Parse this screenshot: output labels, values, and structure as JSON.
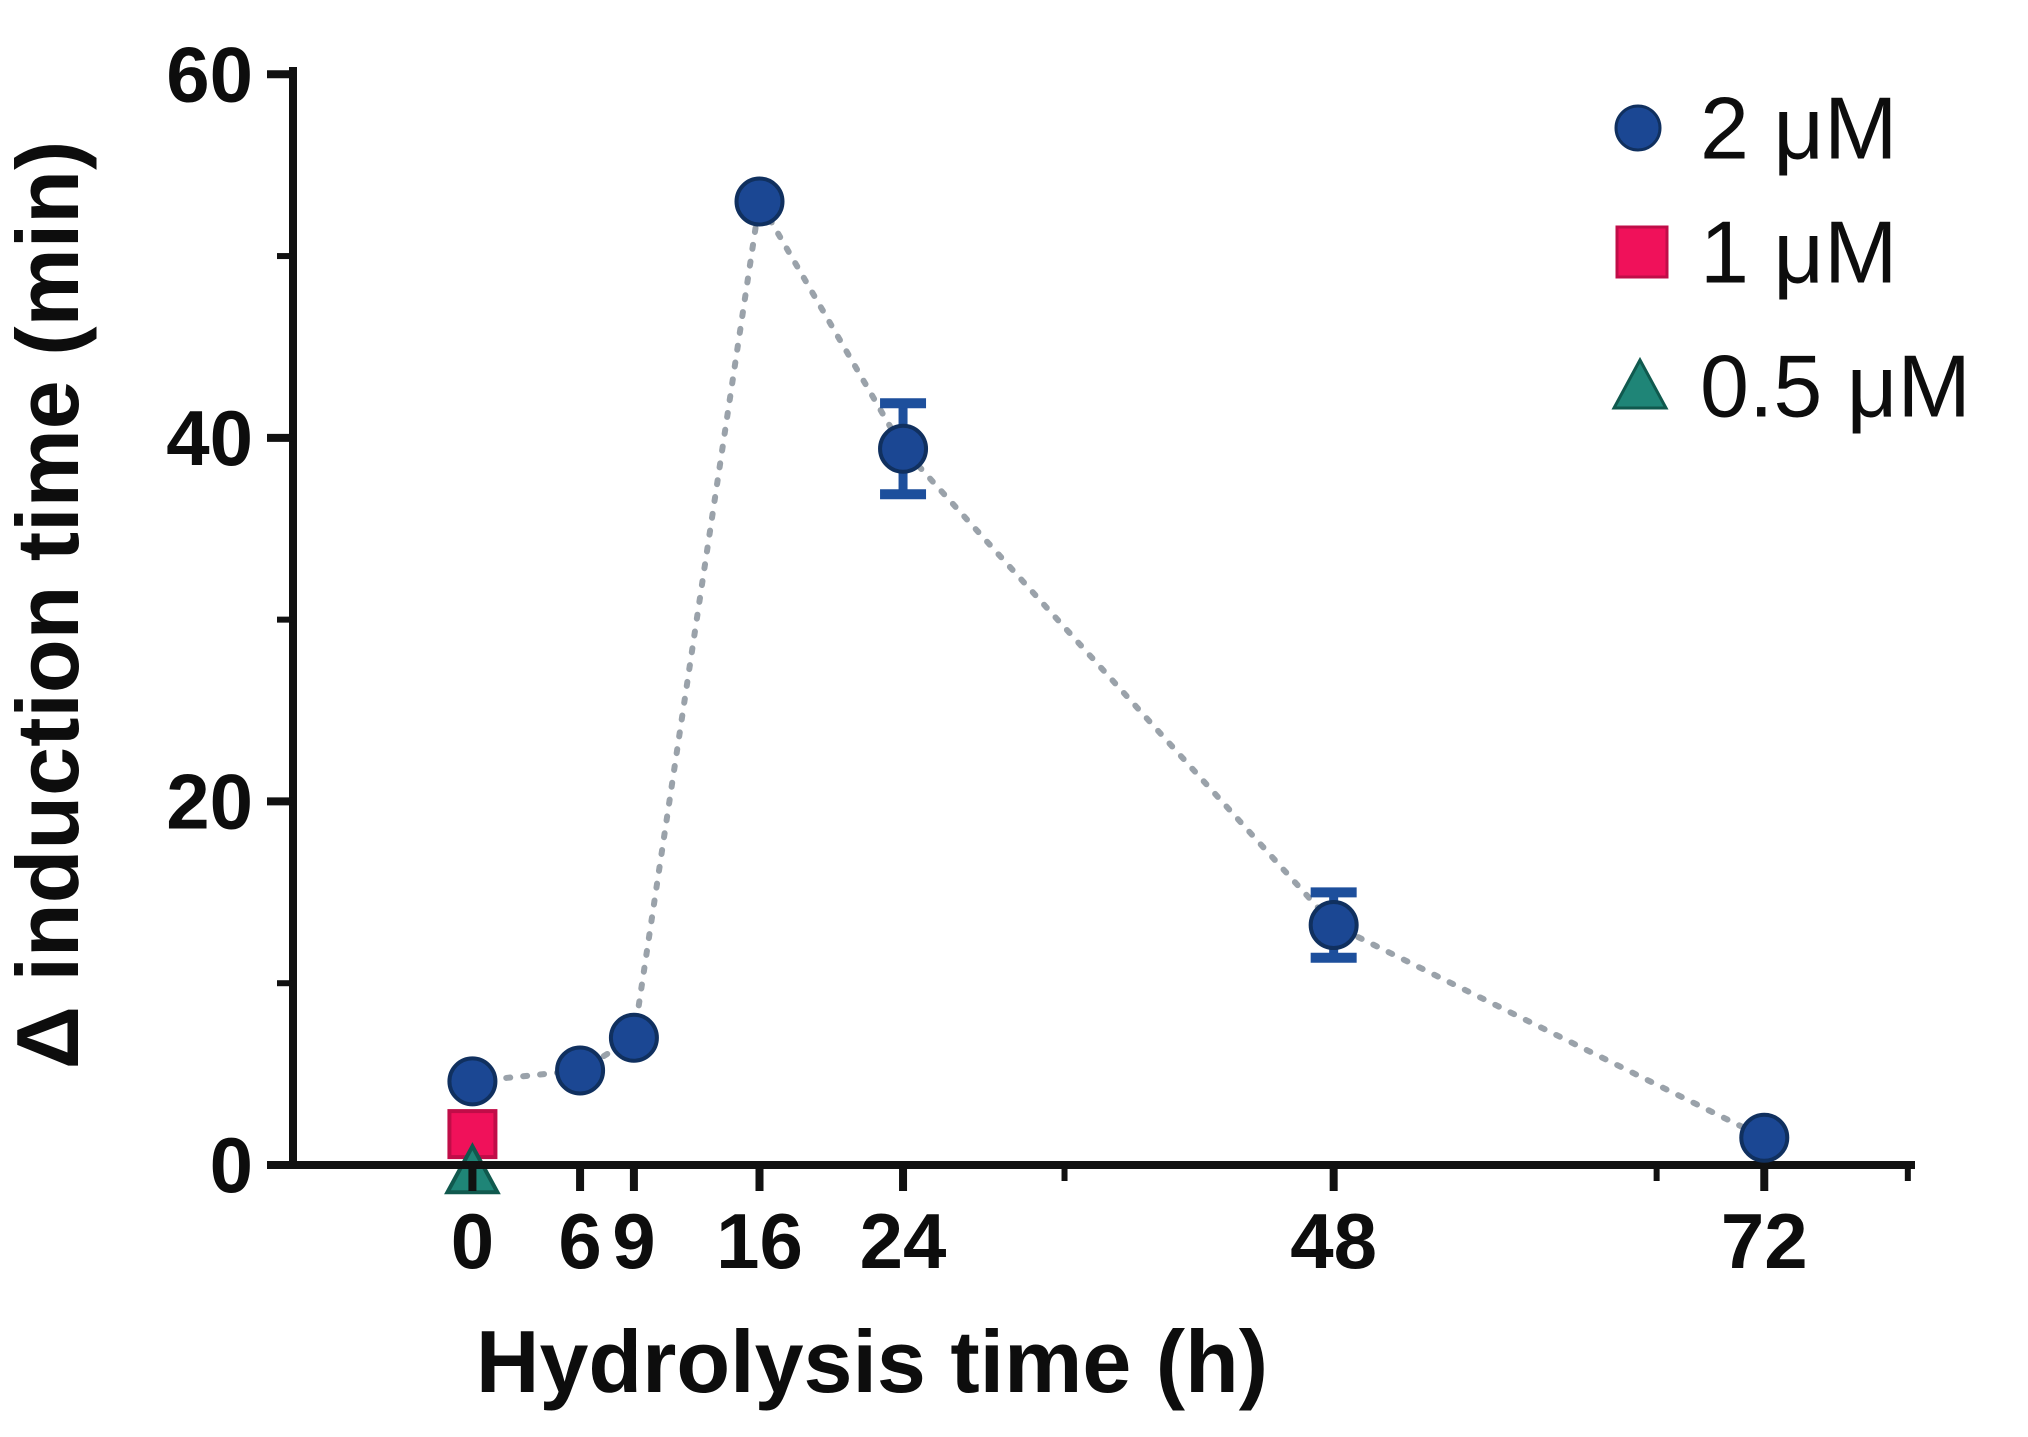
{
  "figure": {
    "kind": "scientific scatter plot",
    "background": "#ffffff"
  },
  "chart_data": {
    "type": "scatter",
    "title": "",
    "xlabel": "Hydrolysis time (h)",
    "ylabel": "Δ induction time (min)",
    "xlim": [
      -10,
      80.4
    ],
    "ylim": [
      0,
      60.4
    ],
    "grid": false,
    "legend_position": "top-right",
    "x_major_ticks": [
      0,
      6,
      9,
      16,
      24,
      48,
      72
    ],
    "x_minor_ticks": [
      33,
      66,
      80
    ],
    "y_major_ticks": [
      0,
      20,
      40,
      60
    ],
    "y_minor_ticks": [
      10,
      30,
      50
    ],
    "x_tick_labels": [
      "0",
      "6",
      "9",
      "16",
      "24",
      "48",
      "72"
    ],
    "y_tick_labels": [
      "0",
      "20",
      "40",
      "60"
    ],
    "connector": {
      "style": "dotted",
      "color": "#9aa2aa"
    },
    "error_bar_color": "#1d4f9c",
    "series": [
      {
        "name": "2 μM",
        "marker": "circle",
        "color": "#1b4793",
        "edge_color": "#10305f",
        "connected": true,
        "x": [
          0,
          6,
          9,
          16,
          24,
          48,
          72
        ],
        "y": [
          4.6,
          5.2,
          7.0,
          53.0,
          39.4,
          13.2,
          1.5
        ],
        "y_err": [
          0,
          0,
          0,
          0,
          2.5,
          1.8,
          0
        ]
      },
      {
        "name": "1 μM",
        "marker": "square",
        "color": "#f0115a",
        "edge_color": "#c00d48",
        "connected": false,
        "x": [
          0
        ],
        "y": [
          1.7
        ],
        "y_err": [
          0
        ]
      },
      {
        "name": "0.5 μM",
        "marker": "triangle",
        "color": "#1f8577",
        "edge_color": "#10594e",
        "connected": false,
        "x": [
          0
        ],
        "y": [
          -0.4
        ],
        "y_err": [
          0
        ]
      }
    ]
  }
}
